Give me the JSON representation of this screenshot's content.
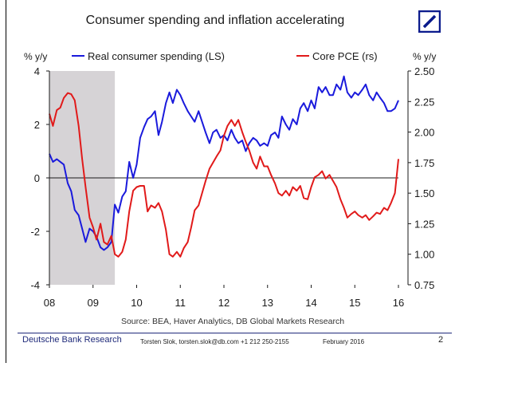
{
  "chart_data": {
    "type": "line",
    "title": "Consumer spending and inflation accelerating",
    "left_axis_label": "% y/y",
    "right_axis_label": "% y/y",
    "x_ticks": [
      "08",
      "09",
      "10",
      "11",
      "12",
      "13",
      "14",
      "15",
      "16"
    ],
    "xlim": [
      2008,
      2016
    ],
    "left_ylim": [
      -4,
      4
    ],
    "left_ticks": [
      "4",
      "2",
      "0",
      "-2",
      "-4"
    ],
    "right_ylim": [
      0.75,
      2.5
    ],
    "right_ticks": [
      "2.50",
      "2.25",
      "2.00",
      "1.75",
      "1.50",
      "1.25",
      "1.00",
      "0.75"
    ],
    "recession_shade": [
      2008.0,
      2009.5
    ],
    "series": [
      {
        "name": "Real consumer spending (LS)",
        "axis": "left",
        "color": "#1a1adc",
        "x": [
          2008.0,
          2008.08,
          2008.17,
          2008.25,
          2008.33,
          2008.42,
          2008.5,
          2008.58,
          2008.67,
          2008.75,
          2008.83,
          2008.92,
          2009.0,
          2009.08,
          2009.17,
          2009.25,
          2009.33,
          2009.42,
          2009.5,
          2009.58,
          2009.67,
          2009.75,
          2009.83,
          2009.92,
          2010.0,
          2010.08,
          2010.17,
          2010.25,
          2010.33,
          2010.42,
          2010.5,
          2010.58,
          2010.67,
          2010.75,
          2010.83,
          2010.92,
          2011.0,
          2011.08,
          2011.17,
          2011.25,
          2011.33,
          2011.42,
          2011.5,
          2011.58,
          2011.67,
          2011.75,
          2011.83,
          2011.92,
          2012.0,
          2012.08,
          2012.17,
          2012.25,
          2012.33,
          2012.42,
          2012.5,
          2012.58,
          2012.67,
          2012.75,
          2012.83,
          2012.92,
          2013.0,
          2013.08,
          2013.17,
          2013.25,
          2013.33,
          2013.42,
          2013.5,
          2013.58,
          2013.67,
          2013.75,
          2013.83,
          2013.92,
          2014.0,
          2014.08,
          2014.17,
          2014.25,
          2014.33,
          2014.42,
          2014.5,
          2014.58,
          2014.67,
          2014.75,
          2014.83,
          2014.92,
          2015.0,
          2015.08,
          2015.17,
          2015.25,
          2015.33,
          2015.42,
          2015.5,
          2015.58,
          2015.67,
          2015.75,
          2015.83,
          2015.92,
          2016.0
        ],
        "values": [
          0.9,
          0.6,
          0.7,
          0.6,
          0.5,
          -0.2,
          -0.5,
          -1.2,
          -1.4,
          -1.9,
          -2.4,
          -1.9,
          -2.0,
          -2.2,
          -2.6,
          -2.7,
          -2.6,
          -2.4,
          -1.0,
          -1.3,
          -0.7,
          -0.5,
          0.6,
          0.0,
          0.5,
          1.5,
          1.9,
          2.2,
          2.3,
          2.5,
          1.6,
          2.1,
          2.8,
          3.2,
          2.8,
          3.3,
          3.1,
          2.8,
          2.5,
          2.3,
          2.1,
          2.5,
          2.1,
          1.7,
          1.3,
          1.7,
          1.8,
          1.5,
          1.6,
          1.4,
          1.8,
          1.5,
          1.3,
          1.4,
          1.0,
          1.3,
          1.5,
          1.4,
          1.2,
          1.3,
          1.2,
          1.6,
          1.7,
          1.5,
          2.3,
          2.0,
          1.8,
          2.2,
          2.0,
          2.6,
          2.8,
          2.5,
          2.9,
          2.6,
          3.4,
          3.2,
          3.4,
          3.1,
          3.1,
          3.5,
          3.3,
          3.8,
          3.2,
          3.0,
          3.2,
          3.1,
          3.3,
          3.5,
          3.1,
          2.9,
          3.2,
          3.0,
          2.8,
          2.5,
          2.5,
          2.6,
          2.9
        ]
      },
      {
        "name": "Core PCE (rs)",
        "axis": "right",
        "color": "#e11a1a",
        "x": [
          2008.0,
          2008.08,
          2008.17,
          2008.25,
          2008.33,
          2008.42,
          2008.5,
          2008.58,
          2008.67,
          2008.75,
          2008.83,
          2008.92,
          2009.0,
          2009.08,
          2009.17,
          2009.25,
          2009.33,
          2009.42,
          2009.5,
          2009.58,
          2009.67,
          2009.75,
          2009.83,
          2009.92,
          2010.0,
          2010.08,
          2010.17,
          2010.25,
          2010.33,
          2010.42,
          2010.5,
          2010.58,
          2010.67,
          2010.75,
          2010.83,
          2010.92,
          2011.0,
          2011.08,
          2011.17,
          2011.25,
          2011.33,
          2011.42,
          2011.5,
          2011.58,
          2011.67,
          2011.75,
          2011.83,
          2011.92,
          2012.0,
          2012.08,
          2012.17,
          2012.25,
          2012.33,
          2012.42,
          2012.5,
          2012.58,
          2012.67,
          2012.75,
          2012.83,
          2012.92,
          2013.0,
          2013.08,
          2013.17,
          2013.25,
          2013.33,
          2013.42,
          2013.5,
          2013.58,
          2013.67,
          2013.75,
          2013.83,
          2013.92,
          2014.0,
          2014.08,
          2014.17,
          2014.25,
          2014.33,
          2014.42,
          2014.5,
          2014.58,
          2014.67,
          2014.75,
          2014.83,
          2014.92,
          2015.0,
          2015.08,
          2015.17,
          2015.25,
          2015.33,
          2015.42,
          2015.5,
          2015.58,
          2015.67,
          2015.75,
          2015.83,
          2015.92,
          2016.0
        ],
        "values": [
          2.15,
          2.05,
          2.18,
          2.2,
          2.28,
          2.32,
          2.31,
          2.26,
          2.05,
          1.78,
          1.55,
          1.3,
          1.22,
          1.12,
          1.25,
          1.1,
          1.08,
          1.15,
          1.0,
          0.98,
          1.02,
          1.12,
          1.35,
          1.52,
          1.55,
          1.56,
          1.56,
          1.35,
          1.4,
          1.38,
          1.42,
          1.35,
          1.2,
          1.0,
          0.98,
          1.02,
          0.98,
          1.05,
          1.1,
          1.22,
          1.36,
          1.4,
          1.5,
          1.6,
          1.7,
          1.75,
          1.8,
          1.85,
          1.97,
          2.05,
          2.1,
          2.05,
          2.1,
          2.0,
          1.92,
          1.85,
          1.75,
          1.7,
          1.8,
          1.72,
          1.72,
          1.65,
          1.58,
          1.5,
          1.48,
          1.52,
          1.48,
          1.55,
          1.52,
          1.56,
          1.46,
          1.45,
          1.55,
          1.63,
          1.65,
          1.68,
          1.62,
          1.65,
          1.6,
          1.55,
          1.45,
          1.38,
          1.3,
          1.33,
          1.35,
          1.32,
          1.3,
          1.32,
          1.28,
          1.31,
          1.34,
          1.33,
          1.38,
          1.36,
          1.42,
          1.5,
          1.78
        ]
      }
    ],
    "source": "Source: BEA, Haver Analytics, DB Global Markets Research"
  },
  "footer": {
    "brand": "Deutsche Bank Research",
    "contact": "Torsten Slok, torsten.slok@db.com  +1 212 250-2155",
    "date": "February 2016",
    "page": "2"
  },
  "logo": {
    "name": "deutsche-bank-logo-icon",
    "color": "#0a1a8c"
  }
}
